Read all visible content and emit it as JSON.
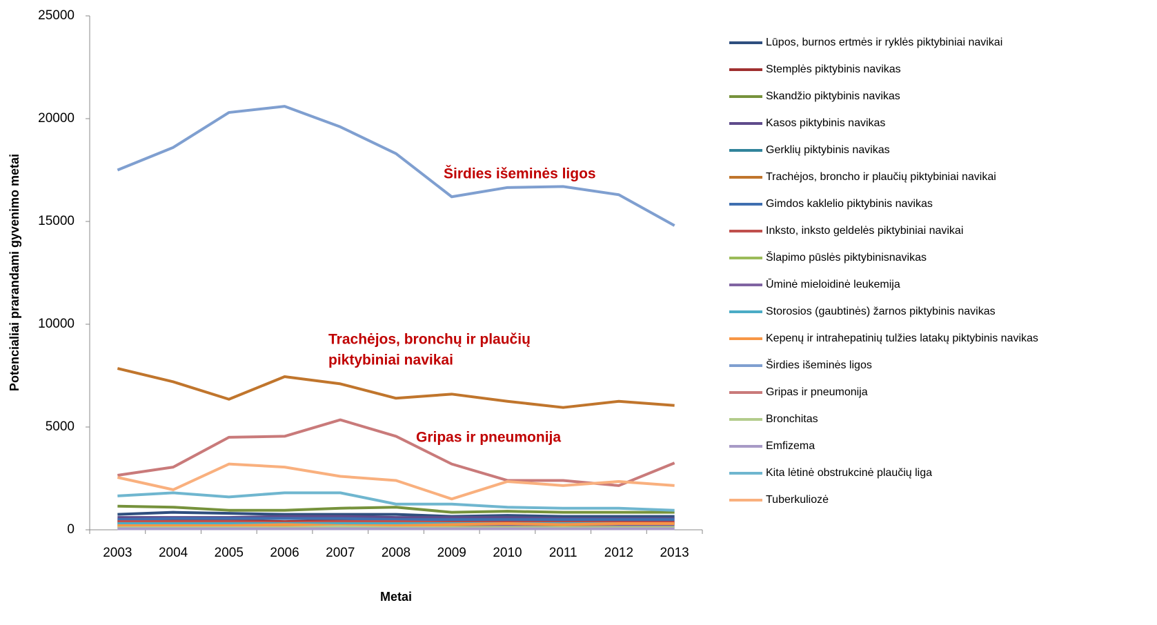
{
  "chart_data": {
    "type": "line",
    "x_label": "Metai",
    "y_label": "Potencialiai prarandami gyvenimo metai",
    "categories": [
      "2003",
      "2004",
      "2005",
      "2006",
      "2007",
      "2008",
      "2009",
      "2010",
      "2011",
      "2012",
      "2013"
    ],
    "ylim": [
      0,
      25000
    ],
    "yticks": [
      0,
      5000,
      10000,
      15000,
      20000,
      25000
    ],
    "grid": false,
    "legend": "right",
    "annotations": [
      [
        "Širdies išeminės ligos"
      ],
      [
        "Trachėjos, bronchų ir plaučių",
        "piktybiniai navikai"
      ],
      [
        "Gripas ir pneumonija"
      ]
    ],
    "series": [
      {
        "name": "Lūpos, burnos ertmės ir ryklės piktybiniai navikai",
        "color": "#2f4f7f",
        "values": [
          750,
          850,
          800,
          750,
          750,
          750,
          650,
          700,
          650,
          650,
          650
        ]
      },
      {
        "name": "Stemplės piktybinis navikas",
        "color": "#a03030",
        "values": [
          450,
          450,
          450,
          400,
          450,
          450,
          450,
          450,
          400,
          400,
          400
        ]
      },
      {
        "name": "Skandžio piktybinis navikas",
        "color": "#76923c",
        "values": [
          1150,
          1100,
          950,
          950,
          1050,
          1100,
          850,
          900,
          850,
          850,
          850
        ]
      },
      {
        "name": "Kasos piktybinis navikas",
        "color": "#5f4b8b",
        "values": [
          600,
          600,
          600,
          650,
          650,
          600,
          600,
          600,
          550,
          550,
          550
        ]
      },
      {
        "name": "Gerklių piktybinis navikas",
        "color": "#31849b",
        "values": [
          350,
          350,
          350,
          350,
          350,
          300,
          300,
          300,
          300,
          300,
          300
        ]
      },
      {
        "name": "Trachėjos, broncho ir plaučių piktybiniai navikai",
        "color": "#c0752c",
        "values": [
          7850,
          7200,
          6350,
          7450,
          7100,
          6400,
          6600,
          6250,
          5950,
          6250,
          6050
        ]
      },
      {
        "name": "Gimdos kaklelio piktybinis navikas",
        "color": "#3f6fb0",
        "values": [
          500,
          550,
          550,
          550,
          550,
          500,
          500,
          500,
          500,
          500,
          500
        ]
      },
      {
        "name": "Inksto, inksto geldelės piktybiniai navikai",
        "color": "#c0504d",
        "values": [
          400,
          400,
          400,
          350,
          400,
          400,
          350,
          350,
          350,
          350,
          350
        ]
      },
      {
        "name": "Šlapimo pūslės piktybinisnavikas",
        "color": "#9bbb59",
        "values": [
          150,
          150,
          150,
          150,
          150,
          150,
          150,
          150,
          150,
          150,
          150
        ]
      },
      {
        "name": "Ūminė mieloidinė leukemija",
        "color": "#8064a2",
        "values": [
          250,
          250,
          250,
          250,
          250,
          250,
          250,
          250,
          250,
          250,
          250
        ]
      },
      {
        "name": "Storosios (gaubtinės) žarnos piktybinis navikas",
        "color": "#4bacc6",
        "values": [
          300,
          300,
          300,
          300,
          300,
          300,
          300,
          300,
          300,
          300,
          300
        ]
      },
      {
        "name": "Kepenų ir intrahepatinių tulžies latakų piktybinis navikas",
        "color": "#f79646",
        "values": [
          200,
          200,
          200,
          250,
          200,
          200,
          250,
          300,
          250,
          300,
          300
        ]
      },
      {
        "name": "Širdies išeminės  ligos",
        "color": "#7f9fd0",
        "values": [
          17500,
          18600,
          20300,
          20600,
          19600,
          18300,
          16200,
          16650,
          16700,
          16300,
          14800
        ]
      },
      {
        "name": "Gripas ir pneumonija",
        "color": "#c97a7a",
        "values": [
          2650,
          3050,
          4500,
          4550,
          5350,
          4550,
          3200,
          2400,
          2400,
          2150,
          3250
        ]
      },
      {
        "name": "Bronchitas",
        "color": "#b3cc8c",
        "values": [
          100,
          100,
          100,
          100,
          150,
          100,
          100,
          100,
          100,
          100,
          100
        ]
      },
      {
        "name": "Emfizema",
        "color": "#a89ac6",
        "values": [
          50,
          50,
          50,
          50,
          50,
          50,
          50,
          50,
          50,
          50,
          50
        ]
      },
      {
        "name": "Kita lėtinė obstrukcinė plaučių liga",
        "color": "#6fb6cf",
        "values": [
          1650,
          1800,
          1600,
          1800,
          1800,
          1250,
          1250,
          1100,
          1050,
          1050,
          950
        ]
      },
      {
        "name": "Tuberkuliozė",
        "color": "#f9b07e",
        "values": [
          2550,
          1950,
          3200,
          3050,
          2600,
          2400,
          1500,
          2350,
          2150,
          2350,
          2150
        ]
      }
    ]
  }
}
